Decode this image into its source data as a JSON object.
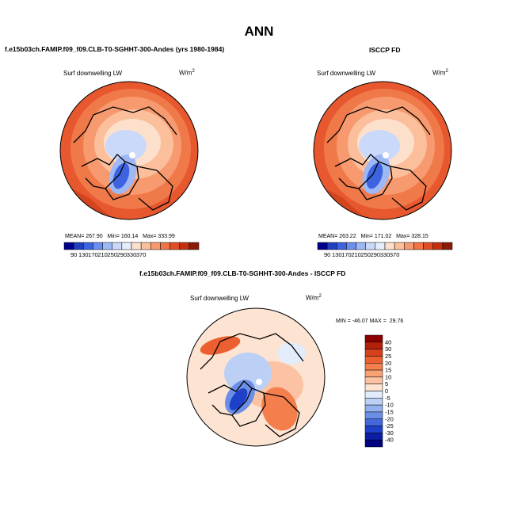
{
  "page": {
    "title": "ANN"
  },
  "chart_data": [
    {
      "type": "contour-map",
      "panel_title": "f.e15b03ch.FAMIP.f09_f09.CLB-T0-SGHHT-300-Andes (yrs 1980-1984)",
      "variable": "Surf downwelling LW",
      "units": "W/m",
      "units_exponent": "2",
      "projection": "north polar stereographic",
      "stats": {
        "mean_label": "MEAN=",
        "mean": "267.90",
        "min_label": "Min=",
        "min": "160.14",
        "max_label": "Max=",
        "max": "333.99"
      },
      "colorbar": {
        "orientation": "horizontal",
        "tick_labels": [
          "90",
          "130",
          "170",
          "210",
          "250",
          "290",
          "330",
          "370"
        ],
        "colors": [
          "#00008b",
          "#1f3fbf",
          "#3d63e0",
          "#6b8fee",
          "#9db8f5",
          "#cad9fa",
          "#e6eefc",
          "#fde0cc",
          "#fbbf9c",
          "#f79a6f",
          "#f07446",
          "#e14e26",
          "#c4300f",
          "#8b1a06"
        ]
      }
    },
    {
      "type": "contour-map",
      "panel_title": "ISCCP FD",
      "variable": "Surf downwelling LW",
      "units": "W/m",
      "units_exponent": "2",
      "projection": "north polar stereographic",
      "stats": {
        "mean_label": "MEAN=",
        "mean": "263.22",
        "min_label": "Min=",
        "min": "171.02",
        "max_label": "Max=",
        "max": "328.15"
      },
      "colorbar": {
        "orientation": "horizontal",
        "tick_labels": [
          "90",
          "130",
          "170",
          "210",
          "250",
          "290",
          "330",
          "370"
        ],
        "colors": [
          "#00008b",
          "#1f3fbf",
          "#3d63e0",
          "#6b8fee",
          "#9db8f5",
          "#cad9fa",
          "#e6eefc",
          "#fde0cc",
          "#fbbf9c",
          "#f79a6f",
          "#f07446",
          "#e14e26",
          "#c4300f",
          "#8b1a06"
        ]
      }
    },
    {
      "type": "contour-map",
      "panel_title": "f.e15b03ch.FAMIP.f09_f09.CLB-T0-SGHHT-300-Andes - ISCCP FD",
      "variable": "Surf downwelling LW",
      "units": "W/m",
      "units_exponent": "2",
      "projection": "north polar stereographic",
      "stats": {
        "min_label": "MIN =",
        "min": "-46.07",
        "max_label": "MAX =",
        "max": "29.76"
      },
      "colorbar": {
        "orientation": "vertical",
        "tick_labels": [
          "40",
          "30",
          "25",
          "20",
          "15",
          "10",
          "5",
          "0",
          "-5",
          "-10",
          "-15",
          "-20",
          "-25",
          "-30",
          "-40"
        ],
        "colors": [
          "#8b0000",
          "#b3200c",
          "#d6401c",
          "#ec5f30",
          "#f47f4c",
          "#f8a173",
          "#fbc3a3",
          "#fde3d1",
          "#e2ecfb",
          "#bcd0f6",
          "#94b1ef",
          "#6b8fe6",
          "#4268db",
          "#1f40c8",
          "#0d1ea6",
          "#000080"
        ]
      }
    }
  ]
}
